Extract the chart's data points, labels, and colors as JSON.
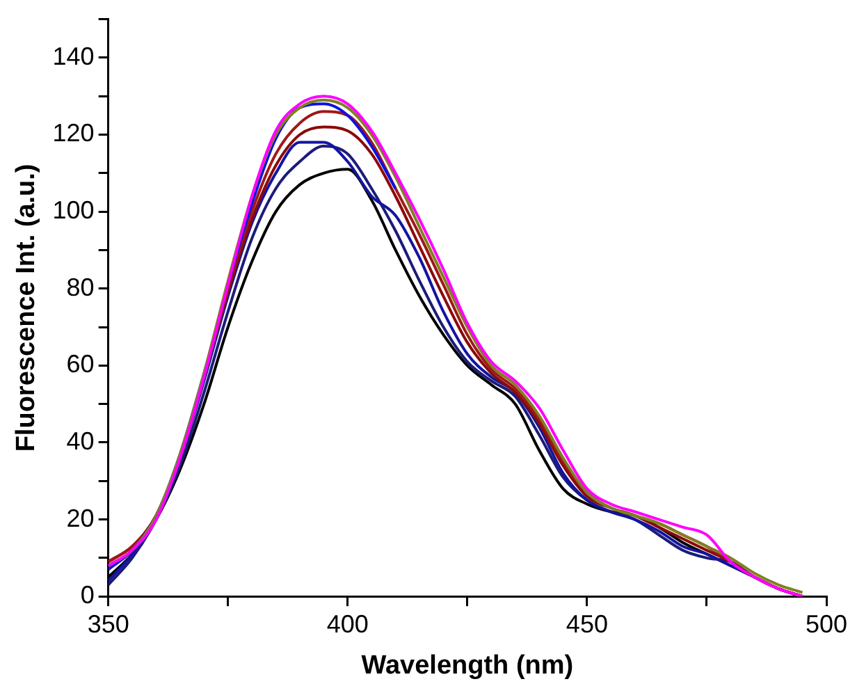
{
  "chart_data": {
    "type": "line",
    "xlabel": "Wavelength (nm)",
    "ylabel": "Fluorescence Int. (a.u.)",
    "xlim": [
      350,
      500
    ],
    "ylim": [
      0,
      150
    ],
    "xticks": [
      350,
      {
        "value": 375,
        "label": null
      },
      400,
      {
        "value": 425,
        "label": null
      },
      450,
      {
        "value": 475,
        "label": null
      },
      500
    ],
    "yticks": [
      0,
      {
        "value": 10,
        "label": null
      },
      20,
      {
        "value": 30,
        "label": null
      },
      40,
      {
        "value": 50,
        "label": null
      },
      60,
      {
        "value": 70,
        "label": null
      },
      80,
      {
        "value": 90,
        "label": null
      },
      100,
      {
        "value": 110,
        "label": null
      },
      120,
      {
        "value": 130,
        "label": null
      },
      140,
      {
        "value": 150,
        "label": null
      }
    ],
    "grid": false,
    "legend": false,
    "marker": "none",
    "line_style": "solid",
    "x": [
      350,
      355,
      360,
      365,
      370,
      375,
      380,
      385,
      390,
      395,
      400,
      405,
      410,
      415,
      420,
      425,
      430,
      435,
      440,
      445,
      450,
      455,
      460,
      465,
      470,
      475,
      480,
      485,
      490,
      495
    ],
    "series": [
      {
        "color": "#000000",
        "values": [
          5,
          11,
          20,
          33,
          50,
          70,
          87,
          100,
          107,
          110,
          111,
          103,
          90,
          78,
          68,
          60,
          55,
          50,
          38,
          28,
          24,
          22,
          21,
          18,
          14,
          11,
          8,
          5,
          2,
          0
        ]
      },
      {
        "color": "#1c1c7a",
        "values": [
          3,
          10,
          20,
          34,
          53,
          74,
          93,
          106,
          113,
          117,
          115,
          106,
          95,
          82,
          70,
          61,
          56,
          52,
          42,
          31,
          25,
          22,
          20,
          16,
          12,
          10,
          9,
          5,
          2,
          0
        ]
      },
      {
        "color": "#1414a0",
        "values": [
          4,
          11,
          21,
          36,
          56,
          78,
          97,
          110,
          118,
          118,
          113,
          104,
          99,
          88,
          74,
          63,
          57,
          53,
          44,
          32,
          25,
          22,
          20,
          17,
          13,
          11,
          8,
          5,
          2,
          0
        ]
      },
      {
        "color": "#8b0a0a",
        "values": [
          9,
          13,
          21,
          36,
          57,
          79,
          98,
          112,
          120,
          122,
          121,
          115,
          104,
          91,
          78,
          66,
          58,
          53,
          45,
          34,
          26,
          23,
          21,
          18,
          15,
          12,
          9,
          5,
          2,
          0
        ]
      },
      {
        "color": "#a01818",
        "values": [
          9,
          13,
          21,
          36,
          57,
          80,
          100,
          115,
          123,
          126,
          125,
          118,
          106,
          94,
          81,
          68,
          59,
          54,
          46,
          35,
          27,
          23,
          21,
          19,
          16,
          13,
          9,
          5,
          2,
          0
        ]
      },
      {
        "color": "#1010e0",
        "values": [
          7,
          12,
          21,
          37,
          58,
          81,
          102,
          119,
          127,
          128,
          125,
          117,
          106,
          null,
          null,
          null,
          null,
          null,
          null,
          null,
          null,
          null,
          null,
          null,
          null,
          null,
          null,
          null,
          null,
          null
        ]
      },
      {
        "color": "#808020",
        "values": [
          8,
          12,
          21,
          37,
          58,
          82,
          104,
          120,
          127,
          129,
          127,
          120,
          109,
          96,
          83,
          70,
          60,
          55,
          47,
          36,
          27,
          23,
          21,
          19,
          16,
          13,
          10,
          6,
          3,
          1
        ]
      },
      {
        "color": "#ff00ff",
        "values": [
          8,
          12,
          20,
          36,
          57,
          81,
          104,
          121,
          128,
          130,
          128,
          121,
          110,
          98,
          85,
          71,
          61,
          56,
          49,
          38,
          28,
          24,
          22,
          20,
          18,
          16,
          9,
          5,
          2,
          0
        ]
      }
    ]
  }
}
